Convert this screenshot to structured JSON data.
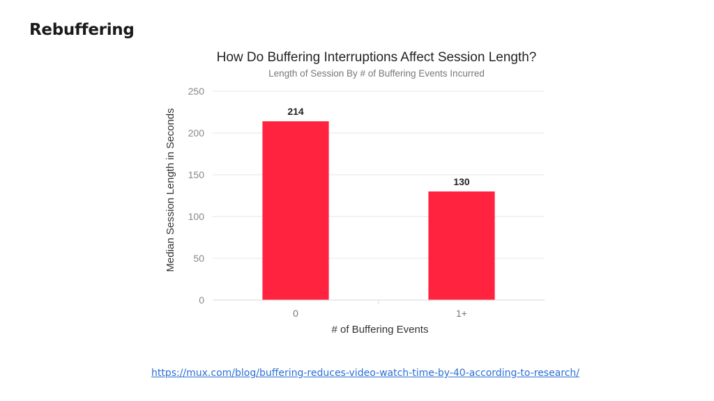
{
  "slide": {
    "title": "Rebuffering",
    "link": "https://mux.com/blog/buffering-reduces-video-watch-time-by-40-according-to-research/"
  },
  "chart_data": {
    "type": "bar",
    "title": "How Do Buffering Interruptions Affect Session Length?",
    "subtitle": "Length of Session By # of Buffering Events Incurred",
    "xlabel": "# of Buffering Events",
    "ylabel": "Median Session Length in Seconds",
    "categories": [
      "0",
      "1+"
    ],
    "values": [
      214,
      130
    ],
    "data_labels": [
      "214",
      "130"
    ],
    "ylim": [
      0,
      250
    ],
    "yticks": [
      0,
      50,
      100,
      150,
      200,
      250
    ],
    "grid": true,
    "legend": "none",
    "bar_color": "#ff2340"
  }
}
